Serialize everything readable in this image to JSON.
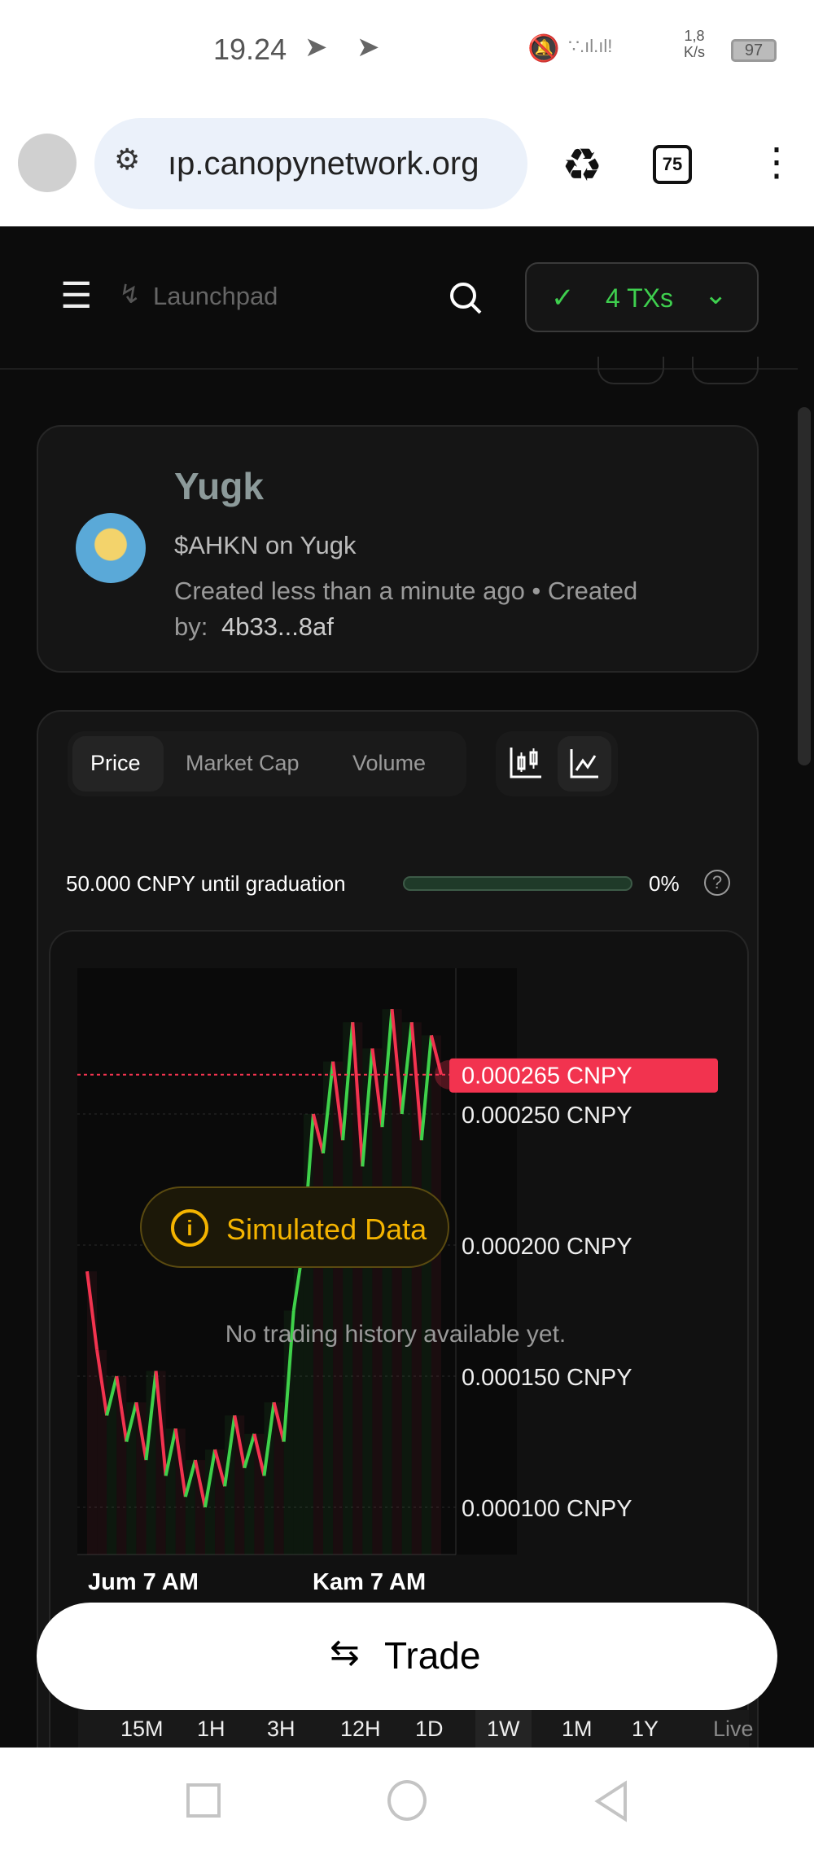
{
  "status": {
    "time": "19.24",
    "speed_value": "1,8",
    "speed_unit": "K/s",
    "battery": "97"
  },
  "browser": {
    "url": "ıp.canopynetwork.org",
    "tab_count": "75"
  },
  "header": {
    "breadcrumb": "Launchpad",
    "tx_label": "4 TXs",
    "tx_color": "#3ecf4e"
  },
  "token": {
    "name": "Yugk",
    "ticker_line": "$AHKN on Yugk",
    "created": "Created less than a minute ago • Created",
    "created_by_label": "by:",
    "creator": "4b33...8af"
  },
  "chart_tabs": [
    {
      "label": "Price",
      "active": true
    },
    {
      "label": "Market Cap",
      "active": false
    },
    {
      "label": "Volume",
      "active": false
    }
  ],
  "chart_type_icons": [
    "candlestick-chart-icon",
    "line-chart-icon"
  ],
  "graduation": {
    "label": "50.000 CNPY until graduation",
    "progress_percent": 0,
    "percent_label": "0%"
  },
  "overlay": {
    "badge": "Simulated Data",
    "message": "No trading history available yet."
  },
  "chart_data": {
    "type": "line",
    "ylim": [
      8.5e-05,
      0.0003
    ],
    "y_ticks": [
      "0.000250 CNPY",
      "0.000200 CNPY",
      "0.000150 CNPY",
      "0.000100 CNPY"
    ],
    "y_tick_values": [
      0.00025,
      0.0002,
      0.00015,
      0.0001
    ],
    "x_ticks": [
      "Jum 7 AM",
      "Kam 7 AM"
    ],
    "current_price_label": "0.000265 CNPY",
    "current_price": 0.000265,
    "up_color": "#3fd14a",
    "down_color": "#f2334f",
    "values": [
      0.00019,
      0.00016,
      0.000135,
      0.00015,
      0.000125,
      0.00014,
      0.000118,
      0.000152,
      0.000112,
      0.00013,
      0.000104,
      0.000118,
      0.0001,
      0.000122,
      0.000108,
      0.000135,
      0.000115,
      0.000128,
      0.000112,
      0.00014,
      0.000125,
      0.000175,
      0.0002,
      0.00025,
      0.000235,
      0.00027,
      0.00024,
      0.000285,
      0.00023,
      0.000275,
      0.000245,
      0.00029,
      0.00025,
      0.000285,
      0.00024,
      0.00028,
      0.000265
    ]
  },
  "timeframes": [
    "15M",
    "1H",
    "3H",
    "12H",
    "1D",
    "1W",
    "1M",
    "1Y",
    "Live"
  ],
  "active_timeframe": "1W",
  "trade_label": "Trade"
}
